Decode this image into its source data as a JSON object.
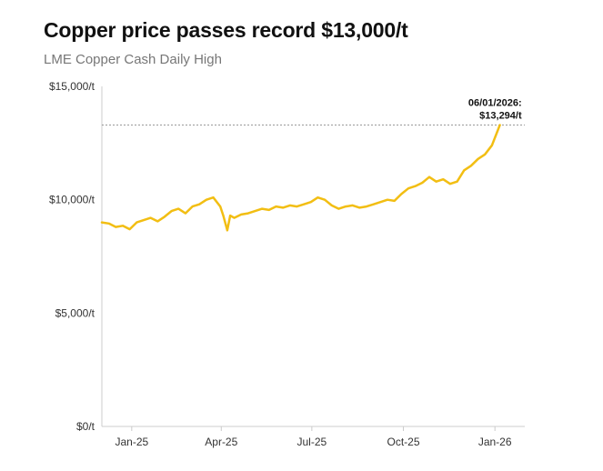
{
  "title": "Copper price passes record $13,000/t",
  "subtitle": "LME Copper Cash Daily High",
  "colors": {
    "line": "#F2BE13",
    "axis": "#cccccc",
    "refline": "#999999",
    "text": "#333333"
  },
  "chart_data": {
    "type": "line",
    "title": "Copper price passes record $13,000/t",
    "subtitle": "LME Copper Cash Daily High",
    "xlabel": "",
    "ylabel": "",
    "ylim": [
      0,
      15000
    ],
    "y_ticks": [
      0,
      5000,
      10000,
      15000
    ],
    "y_tick_labels": [
      "$0/t",
      "$5,000/t",
      "$10,000/t",
      "$15,000/t"
    ],
    "xlim": [
      "2024-12-02",
      "2026-01-31"
    ],
    "x_ticks": [
      "2025-01-01",
      "2025-04-01",
      "2025-07-01",
      "2025-10-01",
      "2026-01-01"
    ],
    "x_tick_labels": [
      "Jan-25",
      "Apr-25",
      "Jul-25",
      "Oct-25",
      "Jan-26"
    ],
    "grid": false,
    "annotation": {
      "x": "2026-01-06",
      "y": 13294,
      "text_line1": "06/01/2026:",
      "text_line2": "$13,294/t"
    },
    "series": [
      {
        "x": [
          "2024-12-02",
          "2024-12-09",
          "2024-12-16",
          "2024-12-23",
          "2024-12-30",
          "2025-01-06",
          "2025-01-13",
          "2025-01-20",
          "2025-01-27",
          "2025-02-03",
          "2025-02-10",
          "2025-02-17",
          "2025-02-24",
          "2025-03-03",
          "2025-03-10",
          "2025-03-17",
          "2025-03-24",
          "2025-03-31",
          "2025-04-03",
          "2025-04-07",
          "2025-04-10",
          "2025-04-14",
          "2025-04-21",
          "2025-04-28",
          "2025-05-05",
          "2025-05-12",
          "2025-05-19",
          "2025-05-26",
          "2025-06-02",
          "2025-06-09",
          "2025-06-16",
          "2025-06-23",
          "2025-06-30",
          "2025-07-07",
          "2025-07-14",
          "2025-07-21",
          "2025-07-28",
          "2025-08-04",
          "2025-08-11",
          "2025-08-18",
          "2025-08-25",
          "2025-09-01",
          "2025-09-08",
          "2025-09-15",
          "2025-09-22",
          "2025-09-29",
          "2025-10-06",
          "2025-10-13",
          "2025-10-20",
          "2025-10-27",
          "2025-11-03",
          "2025-11-10",
          "2025-11-17",
          "2025-11-24",
          "2025-12-01",
          "2025-12-08",
          "2025-12-15",
          "2025-12-22",
          "2025-12-29",
          "2026-01-06"
        ],
        "values": [
          9000,
          8950,
          8800,
          8850,
          8700,
          9000,
          9100,
          9200,
          9050,
          9250,
          9500,
          9600,
          9400,
          9700,
          9800,
          10000,
          10100,
          9700,
          9300,
          8650,
          9300,
          9200,
          9350,
          9400,
          9500,
          9600,
          9550,
          9700,
          9650,
          9750,
          9700,
          9800,
          9900,
          10100,
          10000,
          9750,
          9600,
          9700,
          9750,
          9650,
          9700,
          9800,
          9900,
          10000,
          9950,
          10250,
          10500,
          10600,
          10750,
          11000,
          10800,
          10900,
          10700,
          10800,
          11300,
          11500,
          11800,
          12000,
          12400,
          13294
        ]
      }
    ]
  }
}
